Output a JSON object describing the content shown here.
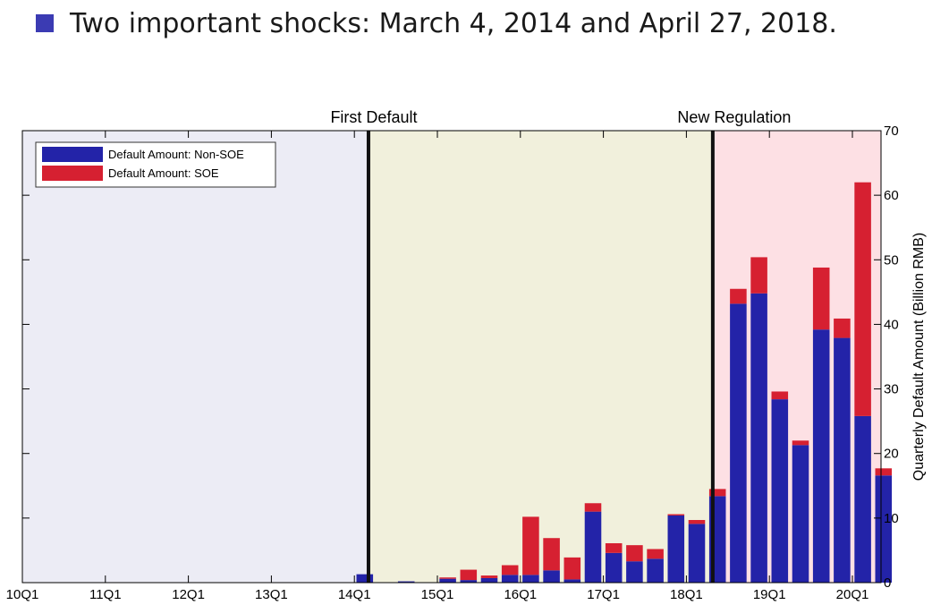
{
  "slide": {
    "bullet_text": "Two important shocks: March 4, 2014 and April 27, 2018.",
    "bullet_color": "#3b3bb3"
  },
  "chart_data": {
    "type": "bar",
    "stacked": true,
    "xlabel": "",
    "ylabel": "Quarterly Default Amount (Billion RMB)",
    "ylim": [
      0,
      70
    ],
    "y_ticks": [
      0,
      10,
      20,
      30,
      40,
      50,
      60,
      70
    ],
    "y_axis_side": "right",
    "x_tick_labels": [
      "10Q1",
      "11Q1",
      "12Q1",
      "13Q1",
      "14Q1",
      "15Q1",
      "16Q1",
      "17Q1",
      "18Q1",
      "19Q1",
      "20Q1"
    ],
    "categories": [
      "14Q1",
      "14Q2",
      "14Q3",
      "14Q4",
      "15Q1",
      "15Q2",
      "15Q3",
      "15Q4",
      "16Q1",
      "16Q2",
      "16Q3",
      "16Q4",
      "17Q1",
      "17Q2",
      "17Q3",
      "17Q4",
      "18Q1",
      "18Q2",
      "18Q3",
      "18Q4",
      "19Q1",
      "19Q2",
      "19Q3",
      "19Q4",
      "20Q1",
      "20Q2"
    ],
    "series": [
      {
        "name": "Default Amount: Non-SOE",
        "color": "#2323a8",
        "values": [
          1.3,
          0,
          0.2,
          0,
          0.6,
          0.4,
          0.7,
          1.2,
          1.2,
          1.9,
          0.5,
          11.0,
          4.6,
          3.3,
          3.7,
          10.4,
          9.1,
          13.4,
          43.2,
          44.8,
          28.4,
          21.3,
          39.2,
          37.9,
          25.8,
          16.6
        ]
      },
      {
        "name": "Default Amount: SOE",
        "color": "#d62031",
        "values": [
          0,
          0,
          0,
          0,
          0.2,
          1.6,
          0.4,
          1.5,
          9.0,
          5.0,
          3.4,
          1.3,
          1.5,
          2.5,
          1.5,
          0.2,
          0.6,
          1.1,
          2.3,
          5.6,
          1.2,
          0.7,
          9.6,
          3.0,
          36.2,
          1.1
        ]
      }
    ],
    "regions": [
      {
        "from": "10Q1",
        "to": "14Q1",
        "color": "#ececf5"
      },
      {
        "from": "14Q1",
        "to": "18Q2",
        "color": "#f1f0dc"
      },
      {
        "from": "18Q2",
        "to": "20Q2",
        "color": "#fde0e4"
      }
    ],
    "events": [
      {
        "label": "First Default",
        "date": "2014-03-04"
      },
      {
        "label": "New Regulation",
        "date": "2018-04-27"
      }
    ],
    "legend": {
      "placement": "top-left",
      "entries": [
        "Default Amount: Non-SOE",
        "Default Amount: SOE"
      ]
    },
    "grid": false
  }
}
